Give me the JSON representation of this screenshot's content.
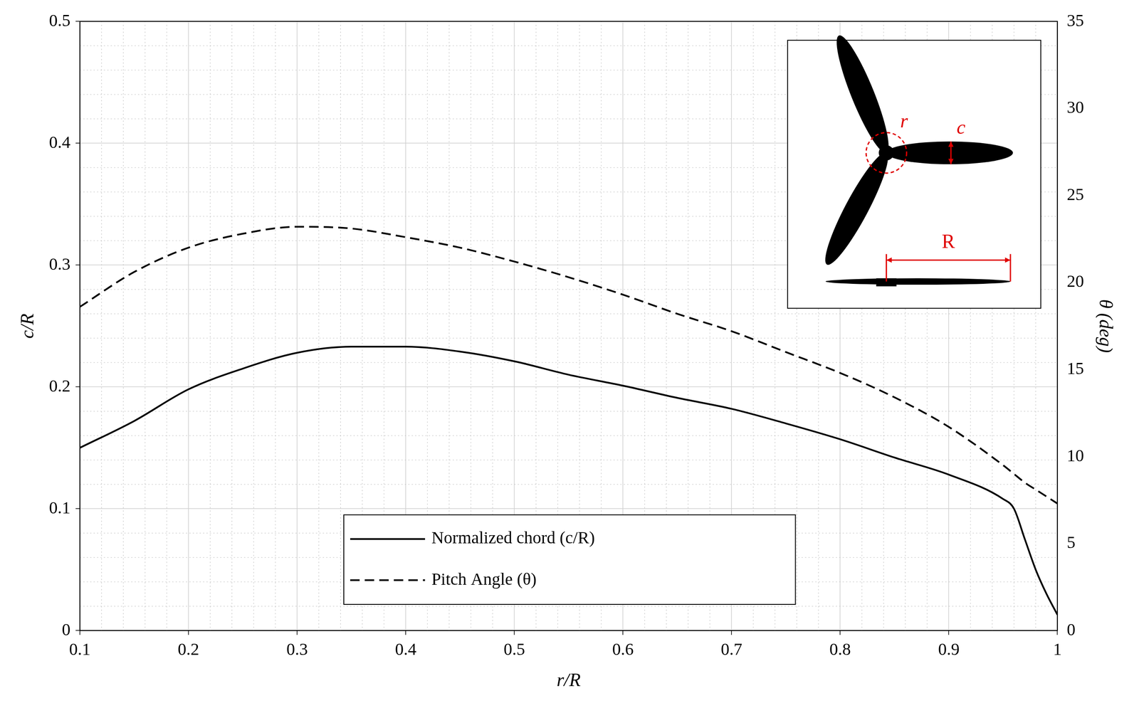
{
  "chart_data": {
    "type": "line",
    "x_label": "r/R",
    "y_label": "c/R",
    "y2_label": "θ (deg)",
    "x": [
      0.1,
      0.15,
      0.2,
      0.25,
      0.3,
      0.35,
      0.4,
      0.45,
      0.5,
      0.55,
      0.6,
      0.65,
      0.7,
      0.75,
      0.8,
      0.85,
      0.9,
      0.95,
      0.96,
      0.97,
      0.98,
      0.99,
      1.0
    ],
    "series": [
      {
        "name": "Normalized chord (c/R)",
        "color": "#000000",
        "line_style": "solid",
        "values": [
          0.15,
          0.172,
          0.198,
          0.215,
          0.228,
          0.233,
          0.233,
          0.229,
          0.221,
          0.21,
          0.201,
          0.191,
          0.182,
          0.17,
          0.157,
          0.142,
          0.128,
          0.108,
          0.1,
          0.075,
          0.05,
          0.03,
          0.013
        ]
      },
      {
        "name": "Pitch Angle (θ)",
        "color": "#000000",
        "line_style": "dashed",
        "axis": "y2",
        "values": [
          18.6,
          20.6,
          22.0,
          22.8,
          23.2,
          23.1,
          22.6,
          22.0,
          21.2,
          20.3,
          19.3,
          18.2,
          17.2,
          16.0,
          14.8,
          13.4,
          11.7,
          9.5,
          9.0,
          8.5,
          8.1,
          7.7,
          7.3
        ]
      }
    ],
    "xlim": [
      0.1,
      1
    ],
    "xticks": [
      0.1,
      0.2,
      0.3,
      0.4,
      0.5,
      0.6,
      0.7,
      0.8,
      0.9,
      1
    ],
    "ylim": [
      0,
      0.5
    ],
    "yticks": [
      0,
      0.1,
      0.2,
      0.3,
      0.4,
      0.5
    ],
    "y2lim": [
      0,
      35
    ],
    "y2ticks": [
      0,
      5,
      10,
      15,
      20,
      25,
      30,
      35
    ],
    "grid": true,
    "legend": "lower center",
    "annotations": [
      "r",
      "c",
      "R"
    ]
  }
}
